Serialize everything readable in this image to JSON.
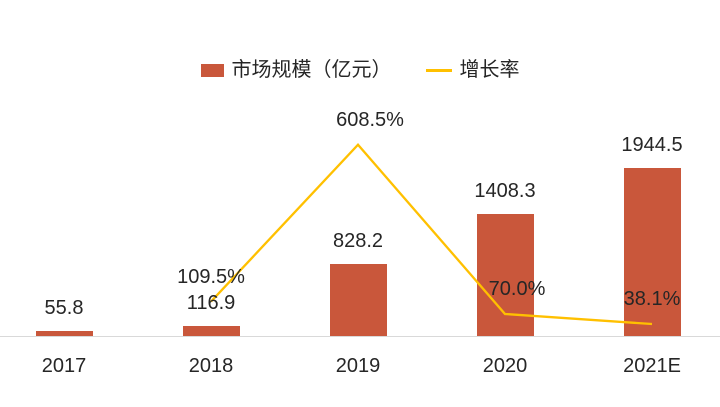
{
  "legend": {
    "items": [
      {
        "label": "市场规模（亿元）",
        "swatch": "bar",
        "color": "#C9573B"
      },
      {
        "label": "增长率",
        "swatch": "line",
        "color": "#FFC000"
      }
    ]
  },
  "colors": {
    "bar": "#C9573B",
    "line": "#FFC000",
    "axis": "#D9D9D9",
    "text": "#262626"
  },
  "chart_data": {
    "type": "bar",
    "subtype": "combo-bar-line",
    "categories": [
      "2017",
      "2018",
      "2019",
      "2020",
      "2021E"
    ],
    "series": [
      {
        "name": "市场规模（亿元）",
        "type": "bar",
        "color": "#C9573B",
        "values": [
          55.8,
          116.9,
          828.2,
          1408.3,
          1944.5
        ],
        "labels": [
          "55.8",
          "116.9",
          "828.2",
          "1408.3",
          "1944.5"
        ],
        "axis": {
          "min": 0,
          "max": 2500
        }
      },
      {
        "name": "增长率",
        "type": "line",
        "color": "#FFC000",
        "values": [
          null,
          109.5,
          608.5,
          70.0,
          38.1
        ],
        "labels": [
          null,
          "109.5%",
          "608.5%",
          "70.0%",
          "38.1%"
        ],
        "unit": "%",
        "axis": {
          "min": 0,
          "max": 700
        }
      }
    ],
    "title": "",
    "xlabel": "",
    "ylabel": "",
    "grid": false,
    "legend_position": "top-center",
    "baseline_axis_visible": true,
    "value_labels_visible": true
  }
}
